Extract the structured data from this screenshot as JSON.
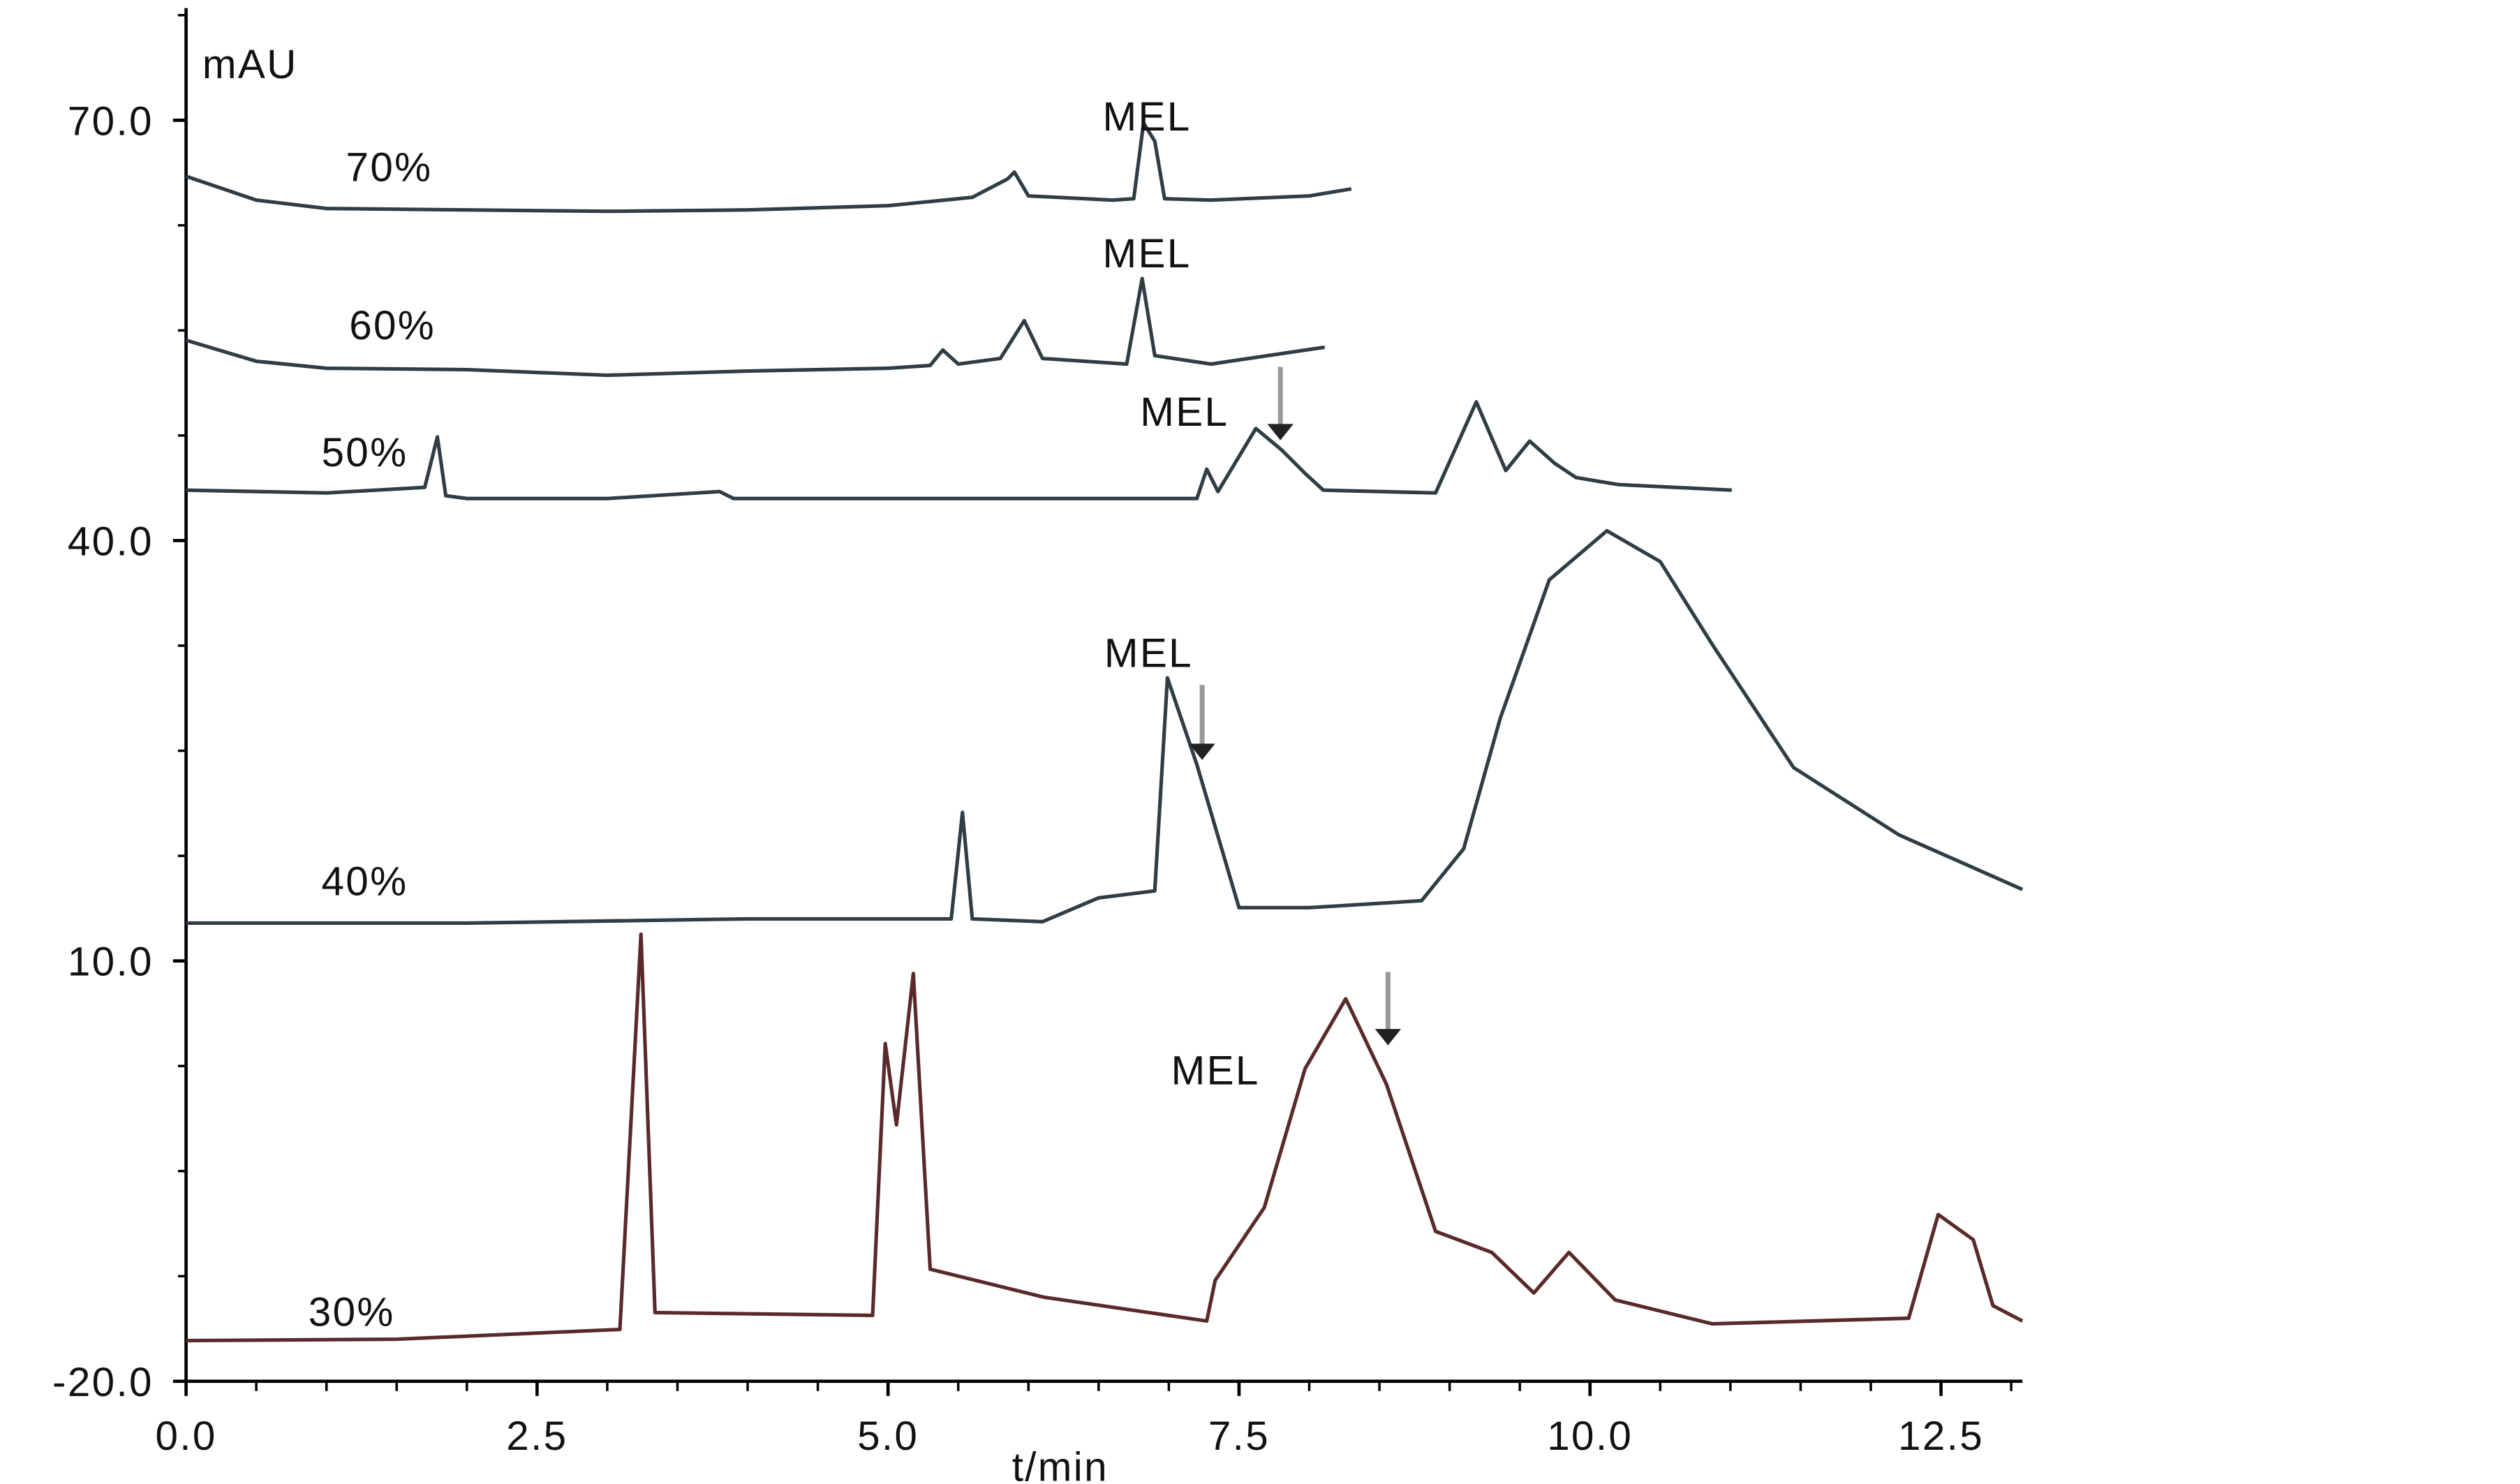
{
  "chart_data": {
    "type": "line",
    "x_label": "t/min",
    "y_label": "mAU",
    "xlim": [
      0,
      13.08
    ],
    "ylim": [
      -20,
      78
    ],
    "xticks": [
      {
        "value": 0,
        "label": "0.0"
      },
      2.5,
      {
        "value": 5,
        "label": "5.0"
      },
      7.5,
      {
        "value": 10,
        "label": "10.0"
      },
      12.5
    ],
    "yticks": [
      {
        "value": -20,
        "label": "-20.0"
      },
      {
        "value": 10,
        "label": "10.0"
      },
      {
        "value": 40,
        "label": "40.0"
      },
      {
        "value": 70,
        "label": "70.0"
      }
    ],
    "series": [
      {
        "name": "70%",
        "color": "#2f3d44",
        "annotation": "MEL",
        "x": [
          0,
          0.5,
          1,
          2,
          3,
          4,
          5,
          5.6,
          5.85,
          5.9,
          6.0,
          6.6,
          6.75,
          6.82,
          6.9,
          6.97,
          7.3,
          8.0,
          8.3
        ],
        "values": [
          66.0,
          64.3,
          63.7,
          63.6,
          63.5,
          63.6,
          63.9,
          64.5,
          65.8,
          66.3,
          64.6,
          64.3,
          64.4,
          69.8,
          68.5,
          64.4,
          64.3,
          64.6,
          65.1
        ]
      },
      {
        "name": "60%",
        "color": "#2f3d44",
        "annotation": "MEL",
        "x": [
          0,
          0.5,
          1,
          2,
          3,
          4,
          5,
          5.3,
          5.39,
          5.5,
          5.8,
          5.97,
          6.1,
          6.7,
          6.81,
          6.9,
          7.3,
          8.11
        ],
        "values": [
          54.3,
          52.8,
          52.3,
          52.2,
          51.8,
          52.1,
          52.3,
          52.5,
          53.6,
          52.6,
          53.0,
          55.7,
          53.0,
          52.6,
          58.7,
          53.2,
          52.6,
          53.8
        ]
      },
      {
        "name": "50%",
        "color": "#2f3d44",
        "annotation": "MEL",
        "x": [
          0,
          1,
          1.7,
          1.79,
          1.85,
          2.0,
          3,
          3.8,
          3.9,
          5,
          6,
          7.2,
          7.27,
          7.35,
          7.62,
          7.8,
          7.97,
          8.1,
          8.9,
          9.19,
          9.4,
          9.57,
          9.75,
          9.9,
          10.2,
          11.01
        ],
        "values": [
          43.6,
          43.4,
          43.8,
          47.4,
          43.2,
          43.0,
          43.0,
          43.5,
          43.0,
          43.0,
          43.0,
          43.0,
          45.1,
          43.5,
          48.0,
          46.5,
          44.8,
          43.6,
          43.4,
          49.9,
          45.0,
          47.1,
          45.5,
          44.5,
          44.0,
          43.6
        ]
      },
      {
        "name": "40%",
        "color": "#2f3d44",
        "annotation": "MEL",
        "x": [
          0,
          2,
          4,
          5.45,
          5.53,
          5.6,
          6.1,
          6.5,
          6.9,
          6.99,
          7.2,
          7.5,
          8.0,
          8.8,
          9.1,
          9.36,
          9.71,
          10.12,
          10.5,
          10.87,
          11.45,
          12.2,
          13.08
        ],
        "values": [
          12.7,
          12.7,
          13.0,
          13.0,
          20.6,
          13.0,
          12.8,
          14.5,
          15.0,
          30.2,
          24.0,
          13.8,
          13.8,
          14.3,
          18.0,
          27.3,
          37.2,
          40.7,
          38.5,
          32.6,
          23.8,
          19.0,
          15.1
        ]
      },
      {
        "name": "30%",
        "color": "#5a2a2a",
        "annotation": "MEL",
        "x": [
          0,
          1.5,
          3.09,
          3.24,
          3.34,
          4.89,
          4.98,
          5.06,
          5.18,
          5.3,
          6.11,
          7.27,
          7.33,
          7.68,
          7.97,
          8.26,
          8.55,
          8.9,
          9.3,
          9.6,
          9.85,
          10.18,
          10.87,
          12.27,
          12.48,
          12.73,
          12.87,
          13.08
        ],
        "values": [
          -17.1,
          -17.0,
          -16.3,
          11.9,
          -15.1,
          -15.3,
          4.1,
          -1.7,
          9.1,
          -12.0,
          -14.0,
          -15.7,
          -12.8,
          -7.6,
          2.3,
          7.3,
          1.2,
          -9.3,
          -10.8,
          -13.7,
          -10.8,
          -14.2,
          -15.9,
          -15.5,
          -8.1,
          -9.9,
          -14.6,
          -15.7
        ]
      }
    ]
  }
}
